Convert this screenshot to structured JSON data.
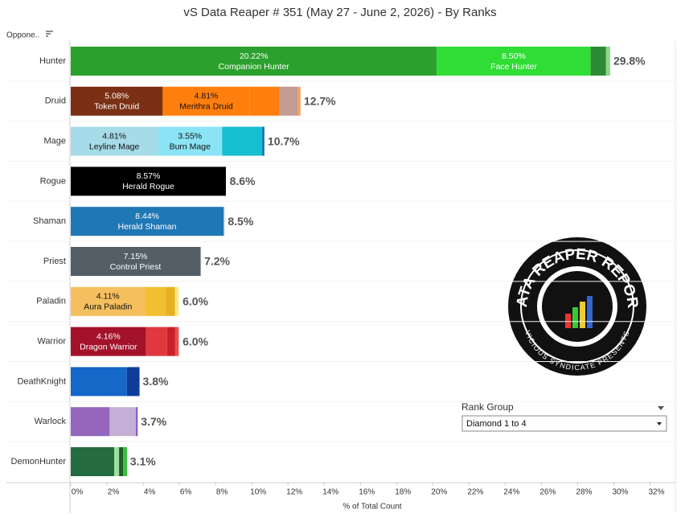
{
  "chart_data": {
    "type": "stacked_bar",
    "title": "vS Data Reaper # 351 (May 27 - June 2, 2026) - By Ranks",
    "row_header": "Oppone..",
    "x_axis_label": "% of Total Count",
    "xlim": [
      0,
      33.4
    ],
    "xticks": [
      {
        "value": 0,
        "label": "0%"
      },
      {
        "value": 2,
        "label": "2%"
      },
      {
        "value": 4,
        "label": "4%"
      },
      {
        "value": 6,
        "label": "6%"
      },
      {
        "value": 8,
        "label": "8%"
      },
      {
        "value": 10,
        "label": "10%"
      },
      {
        "value": 12,
        "label": "12%"
      },
      {
        "value": 14,
        "label": "14%"
      },
      {
        "value": 16,
        "label": "16%"
      },
      {
        "value": 18,
        "label": "18%"
      },
      {
        "value": 20,
        "label": "20%"
      },
      {
        "value": 22,
        "label": "22%"
      },
      {
        "value": 24,
        "label": "24%"
      },
      {
        "value": 26,
        "label": "26%"
      },
      {
        "value": 28,
        "label": "28%"
      },
      {
        "value": 30,
        "label": "30%"
      },
      {
        "value": 32,
        "label": "32%"
      }
    ],
    "bars": [
      {
        "category": "Hunter",
        "total": 29.8,
        "total_label": "29.8%",
        "values": [
          20.22,
          8.5,
          0.85,
          0.23
        ],
        "value_labels": [
          "20.22%",
          "8.50%",
          null,
          null
        ],
        "names": [
          "Companion Hunter",
          "Face Hunter",
          null,
          null
        ],
        "colors": [
          "#2ca02c",
          "#2fdd35",
          "#2d8a35",
          "#8fd68f"
        ]
      },
      {
        "category": "Druid",
        "total": 12.7,
        "total_label": "12.7%",
        "values": [
          5.08,
          4.81,
          1.65,
          1.0,
          0.15
        ],
        "value_labels": [
          "5.08%",
          "4.81%",
          null,
          null,
          null
        ],
        "names": [
          "Token Druid",
          "Merithra Druid",
          null,
          null,
          null
        ],
        "colors": [
          "#7b3014",
          "#ff7f0e",
          "#ff7f0e",
          "#c49c94",
          "#f5a05a"
        ]
      },
      {
        "category": "Mage",
        "total": 10.7,
        "total_label": "10.7%",
        "values": [
          4.81,
          3.55,
          2.2,
          0.14
        ],
        "value_labels": [
          "4.81%",
          "3.55%",
          null,
          null
        ],
        "names": [
          "Leyline Mage",
          "Burn Mage",
          null,
          null
        ],
        "colors": [
          "#a6dbe8",
          "#8ae4f5",
          "#17becf",
          "#1f77b4"
        ]
      },
      {
        "category": "Rogue",
        "total": 8.6,
        "total_label": "8.6%",
        "values": [
          8.57
        ],
        "value_labels": [
          "8.57%"
        ],
        "names": [
          "Herald Rogue"
        ],
        "colors": [
          "#000000"
        ]
      },
      {
        "category": "Shaman",
        "total": 8.5,
        "total_label": "8.5%",
        "values": [
          8.44,
          0.06
        ],
        "value_labels": [
          "8.44%",
          null
        ],
        "names": [
          "Herald Shaman",
          null
        ],
        "colors": [
          "#1f77b4",
          "#aec7e8"
        ]
      },
      {
        "category": "Priest",
        "total": 7.2,
        "total_label": "7.2%",
        "values": [
          7.15,
          0.05
        ],
        "value_labels": [
          "7.15%",
          null
        ],
        "names": [
          "Control Priest",
          null
        ],
        "colors": [
          "#545e66",
          "#9aa3a8"
        ]
      },
      {
        "category": "Paladin",
        "total": 6.0,
        "total_label": "6.0%",
        "values": [
          4.11,
          1.15,
          0.5,
          0.2
        ],
        "value_labels": [
          "4.11%",
          null,
          null,
          null
        ],
        "names": [
          "Aura Paladin",
          null,
          null,
          null
        ],
        "colors": [
          "#f5bf5f",
          "#f0c030",
          "#e8b020",
          "#ffe680"
        ]
      },
      {
        "category": "Warrior",
        "total": 6.0,
        "total_label": "6.0%",
        "values": [
          4.16,
          1.16,
          0.45,
          0.2
        ],
        "value_labels": [
          "4.16%",
          null,
          null,
          null
        ],
        "names": [
          "Dragon Warrior",
          null,
          null,
          null
        ],
        "colors": [
          "#a3122a",
          "#e0383e",
          "#c8202a",
          "#e85050"
        ]
      },
      {
        "category": "DeathKnight",
        "total": 3.8,
        "total_label": "3.8%",
        "values": [
          3.1,
          0.7
        ],
        "value_labels": [
          null,
          null
        ],
        "names": [
          null,
          null
        ],
        "colors": [
          "#1567c8",
          "#0e3d99"
        ]
      },
      {
        "category": "Warlock",
        "total": 3.7,
        "total_label": "3.7%",
        "values": [
          2.15,
          1.45,
          0.1
        ],
        "value_labels": [
          null,
          null,
          null
        ],
        "names": [
          null,
          null,
          null
        ],
        "colors": [
          "#9467bd",
          "#c5b0d5",
          "#8a5ac0"
        ]
      },
      {
        "category": "DemonHunter",
        "total": 3.1,
        "total_label": "3.1%",
        "values": [
          2.4,
          0.27,
          0.22,
          0.22
        ],
        "value_labels": [
          null,
          null,
          null,
          null
        ],
        "names": [
          null,
          null,
          null,
          null
        ],
        "colors": [
          "#256b40",
          "#9ee09e",
          "#1f5a30",
          "#3cc03c"
        ]
      }
    ]
  },
  "filter": {
    "label": "Rank Group",
    "selected": "Diamond 1 to 4"
  },
  "logo": {
    "title": "DATA REAPER REPORT",
    "subtitle": "VICIOUS SYNDICATE PRESENTS"
  }
}
